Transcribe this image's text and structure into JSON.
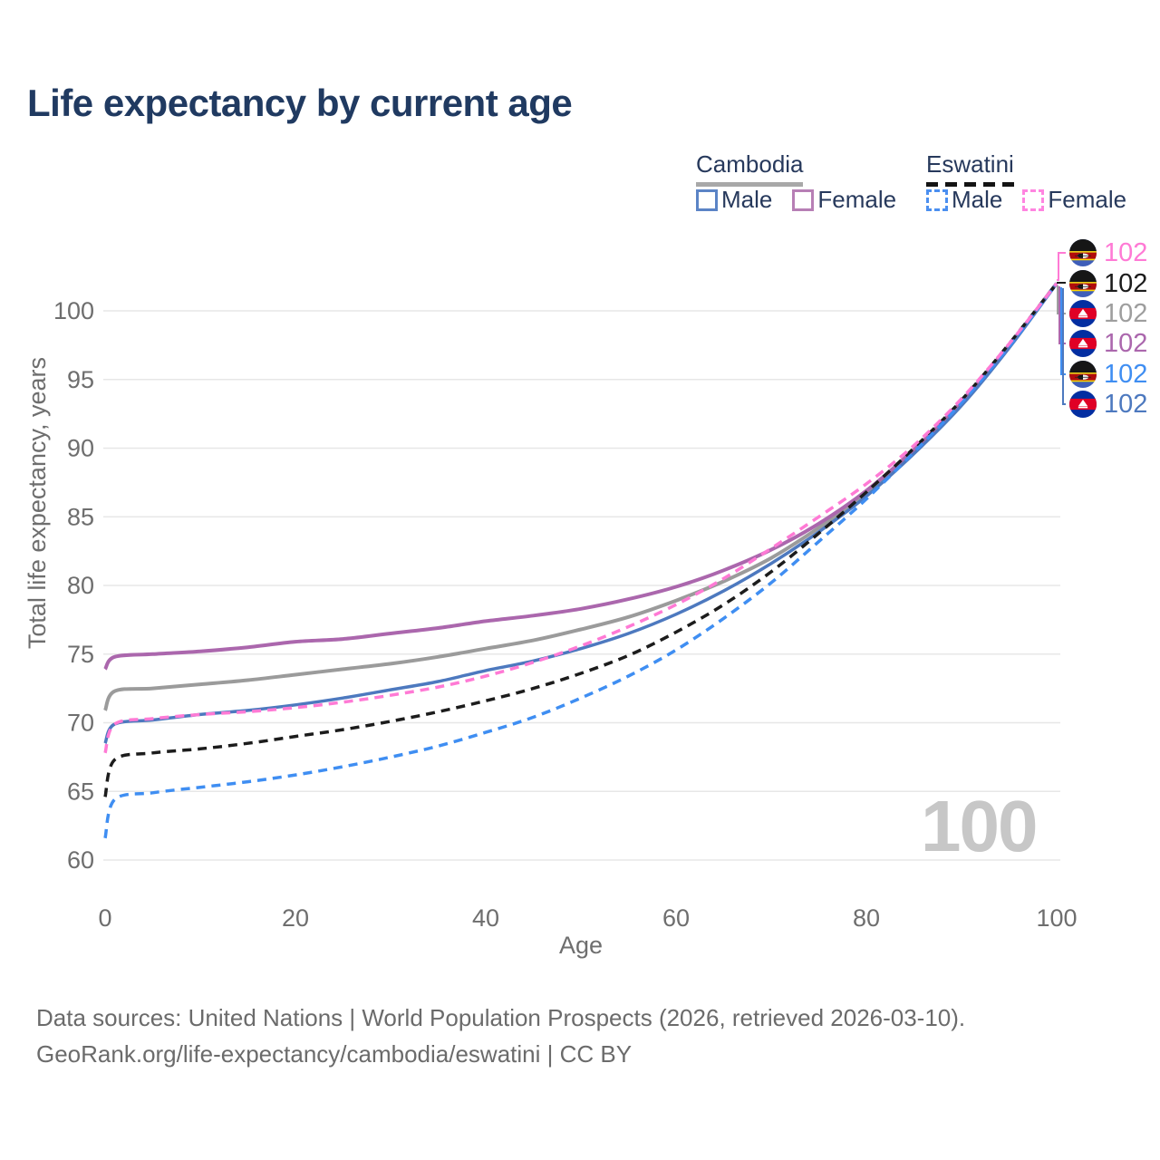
{
  "title": "Life expectancy by current age",
  "legend": {
    "groups": [
      {
        "label": "Cambodia",
        "line_style": "solid",
        "underline_color": "#a8a8a8",
        "items": [
          {
            "label": "Male",
            "color": "#5b84c6"
          },
          {
            "label": "Female",
            "color": "#b77fb5"
          }
        ]
      },
      {
        "label": "Eswatini",
        "line_style": "dashed",
        "underline_color": "#141414",
        "items": [
          {
            "label": "Male",
            "color": "#4b8ff0"
          },
          {
            "label": "Female",
            "color": "#ff85e0"
          }
        ]
      }
    ]
  },
  "watermark_age": "100",
  "footer": {
    "line1": "Data sources: United Nations | World Population Prospects (2026, retrieved 2026-03-10).",
    "line2": "GeoRank.org/life-expectancy/cambodia/eswatini | CC BY"
  },
  "chart_data": {
    "type": "line",
    "title": "Life expectancy by current age",
    "xlabel": "Age",
    "ylabel": "Total life expectancy, years",
    "xlim": [
      0,
      100
    ],
    "ylim": [
      60,
      102
    ],
    "xticks": [
      0,
      20,
      40,
      60,
      80,
      100
    ],
    "yticks": [
      60,
      65,
      70,
      75,
      80,
      85,
      90,
      95,
      100
    ],
    "grid": "horizontal",
    "legend_position": "top-right",
    "x": [
      0,
      1,
      5,
      10,
      15,
      20,
      25,
      30,
      35,
      40,
      45,
      50,
      55,
      60,
      65,
      70,
      75,
      80,
      85,
      90,
      95,
      100
    ],
    "series": [
      {
        "id": "cambodia-both",
        "name": "Cambodia",
        "color": "#9b9b9b",
        "dashed": false,
        "width": 4,
        "values": [
          70.9,
          72.3,
          72.5,
          72.8,
          73.1,
          73.5,
          73.9,
          74.3,
          74.8,
          75.4,
          76.0,
          76.8,
          77.7,
          78.9,
          80.3,
          82.0,
          84.2,
          86.7,
          89.8,
          93.3,
          97.5,
          102
        ]
      },
      {
        "id": "cambodia-female",
        "name": "Cambodia Female",
        "color": "#ab67ad",
        "dashed": false,
        "width": 4,
        "values": [
          73.9,
          74.8,
          75.0,
          75.2,
          75.5,
          75.9,
          76.1,
          76.5,
          76.9,
          77.4,
          77.8,
          78.3,
          79.0,
          79.9,
          81.1,
          82.6,
          84.5,
          86.9,
          89.9,
          93.4,
          97.5,
          102
        ]
      },
      {
        "id": "cambodia-male",
        "name": "Cambodia Male",
        "color": "#4d79bf",
        "dashed": false,
        "width": 3.5,
        "values": [
          68.5,
          69.9,
          70.2,
          70.6,
          70.9,
          71.3,
          71.8,
          72.4,
          73.0,
          73.8,
          74.5,
          75.4,
          76.5,
          77.9,
          79.6,
          81.6,
          83.9,
          86.5,
          89.6,
          93.1,
          97.3,
          102
        ]
      },
      {
        "id": "eswatini-both",
        "name": "Eswatini",
        "color": "#1c1c1c",
        "dashed": true,
        "width": 3.5,
        "values": [
          64.6,
          67.3,
          67.8,
          68.1,
          68.5,
          69.0,
          69.5,
          70.1,
          70.8,
          71.6,
          72.5,
          73.6,
          74.9,
          76.6,
          78.6,
          81.0,
          83.8,
          86.8,
          90.0,
          93.5,
          97.6,
          102
        ]
      },
      {
        "id": "eswatini-male",
        "name": "Eswatini Male",
        "color": "#3f8ef2",
        "dashed": true,
        "width": 3.5,
        "values": [
          61.6,
          64.4,
          64.9,
          65.3,
          65.7,
          66.2,
          66.8,
          67.5,
          68.3,
          69.3,
          70.4,
          71.8,
          73.4,
          75.3,
          77.6,
          80.2,
          83.2,
          86.3,
          89.7,
          93.3,
          97.4,
          102
        ]
      },
      {
        "id": "eswatini-female",
        "name": "Eswatini Female",
        "color": "#ff7ad5",
        "dashed": true,
        "width": 3.5,
        "values": [
          67.8,
          69.9,
          70.3,
          70.6,
          70.8,
          71.1,
          71.5,
          72.0,
          72.6,
          73.4,
          74.4,
          75.6,
          77.0,
          78.6,
          80.5,
          82.7,
          85.0,
          87.4,
          90.2,
          93.6,
          97.6,
          102
        ]
      }
    ],
    "end_labels": [
      {
        "series": "eswatini-female",
        "country": "eswatini",
        "value": "102",
        "color": "#ff7ad5"
      },
      {
        "series": "eswatini-both",
        "country": "eswatini",
        "value": "102",
        "color": "#1c1c1c"
      },
      {
        "series": "cambodia-both",
        "country": "cambodia",
        "value": "102",
        "color": "#9e9e9e"
      },
      {
        "series": "cambodia-female",
        "country": "cambodia",
        "value": "102",
        "color": "#ab67ad"
      },
      {
        "series": "eswatini-male",
        "country": "eswatini",
        "value": "102",
        "color": "#3f8ef2"
      },
      {
        "series": "cambodia-male",
        "country": "cambodia",
        "value": "102",
        "color": "#4d79bf"
      }
    ]
  }
}
